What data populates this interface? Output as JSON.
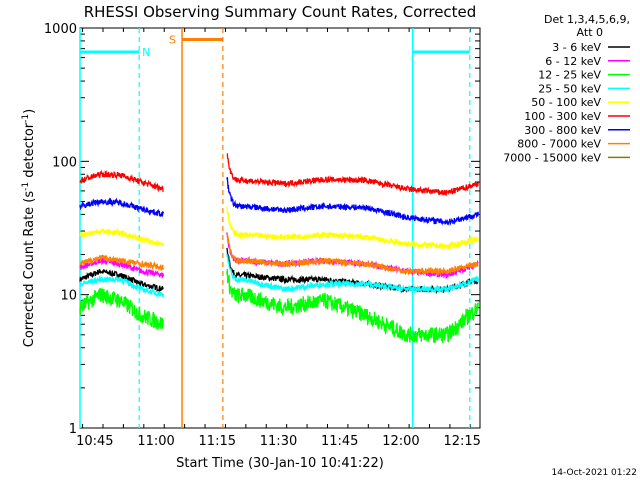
{
  "chart_data": {
    "type": "line",
    "title": "RHESSI Observing Summary Count Rates, Corrected",
    "xlabel": "Start Time (30-Jan-10 10:41:22)",
    "ylabel_main": "Corrected Count Rate (s",
    "ylabel_sup1": "-1",
    "ylabel_mid": " detector",
    "ylabel_sup2": "-1",
    "ylabel_end": ")",
    "x_tick_labels": [
      "10:45",
      "11:00",
      "11:15",
      "11:30",
      "11:45",
      "12:00",
      "12:15"
    ],
    "x_ticks_min": [
      3.633,
      18.633,
      33.633,
      48.633,
      63.633,
      78.633,
      93.633
    ],
    "xlim_min": [
      0,
      98
    ],
    "y_scale": "log",
    "ylim": [
      1,
      1000
    ],
    "y_tick_labels": [
      "1",
      "10",
      "100",
      "1000"
    ],
    "y_ticks": [
      1,
      10,
      100,
      1000
    ],
    "legend_header": [
      "Det 1,3,4,5,6,9,",
      "Att 0"
    ],
    "legend_position": "right",
    "series": [
      {
        "name": "3 - 6 keV",
        "color": "#000000",
        "x_min": [
          0,
          5,
          10,
          15,
          20.5,
          40,
          50,
          60,
          70,
          80,
          90,
          97.5
        ],
        "values": [
          13,
          15,
          14,
          12,
          11,
          14,
          13,
          13,
          12,
          11,
          11,
          13
        ]
      },
      {
        "name": "6 - 12 keV",
        "color": "#ff00ff",
        "x_min": [
          0,
          5,
          10,
          15,
          20.5,
          40,
          50,
          60,
          70,
          80,
          90,
          97.5
        ],
        "values": [
          16,
          18,
          17,
          15,
          14,
          18,
          17,
          18,
          17,
          15,
          14,
          17
        ]
      },
      {
        "name": "12 - 25 keV",
        "color": "#00ff00",
        "x_min": [
          0,
          5,
          10,
          15,
          20.5,
          40,
          50,
          60,
          70,
          80,
          90,
          97.5
        ],
        "values": [
          8,
          10,
          9,
          7,
          6,
          10,
          8,
          9,
          7,
          5,
          5,
          8
        ]
      },
      {
        "name": "25 - 50 keV",
        "color": "#00ffff",
        "x_min": [
          0,
          5,
          10,
          15,
          20.5,
          40,
          50,
          60,
          70,
          80,
          90,
          97.5
        ],
        "values": [
          12,
          13,
          13,
          11,
          10,
          13,
          11,
          12,
          12,
          11,
          11,
          13
        ]
      },
      {
        "name": "50 - 100 keV",
        "color": "#ffff00",
        "x_min": [
          0,
          5,
          10,
          15,
          20.5,
          40,
          50,
          60,
          70,
          80,
          90,
          97.5
        ],
        "values": [
          28,
          30,
          29,
          26,
          24,
          28,
          27,
          28,
          27,
          24,
          23,
          26
        ]
      },
      {
        "name": "100 - 300 keV",
        "color": "#ff0000",
        "x_min": [
          0,
          5,
          10,
          15,
          20.5,
          40,
          50,
          60,
          70,
          80,
          90,
          97.5
        ],
        "values": [
          72,
          80,
          79,
          70,
          62,
          72,
          68,
          73,
          72,
          62,
          58,
          68
        ]
      },
      {
        "name": "300 - 800 keV",
        "color": "#0000ff",
        "x_min": [
          0,
          5,
          10,
          15,
          20.5,
          40,
          50,
          60,
          70,
          80,
          90,
          97.5
        ],
        "values": [
          46,
          50,
          49,
          44,
          40,
          46,
          43,
          46,
          45,
          38,
          35,
          40
        ]
      },
      {
        "name": "800 - 7000 keV",
        "color": "#ff8000",
        "x_min": [
          0,
          5,
          10,
          15,
          20.5,
          40,
          50,
          60,
          70,
          80,
          90,
          97.5
        ],
        "values": [
          17,
          19,
          18,
          17,
          16,
          18,
          17,
          18,
          17,
          15,
          15,
          17
        ]
      },
      {
        "name": "7000 - 15000 keV",
        "color": "#808000",
        "x_min": [],
        "values": []
      }
    ],
    "annotations": [
      {
        "label": "N",
        "color": "#00ffff",
        "type": "night",
        "x_start_min": 0,
        "x_end_min": 14.5
      },
      {
        "label": "",
        "color": "#00ffff",
        "type": "night",
        "x_start_min": 81.5,
        "x_end_min": 95.5
      },
      {
        "label": "S",
        "color": "#ff8000",
        "type": "saa",
        "x_start_min": 25,
        "x_end_min": 35
      }
    ],
    "timestamp": "14-Oct-2021 01:22"
  }
}
